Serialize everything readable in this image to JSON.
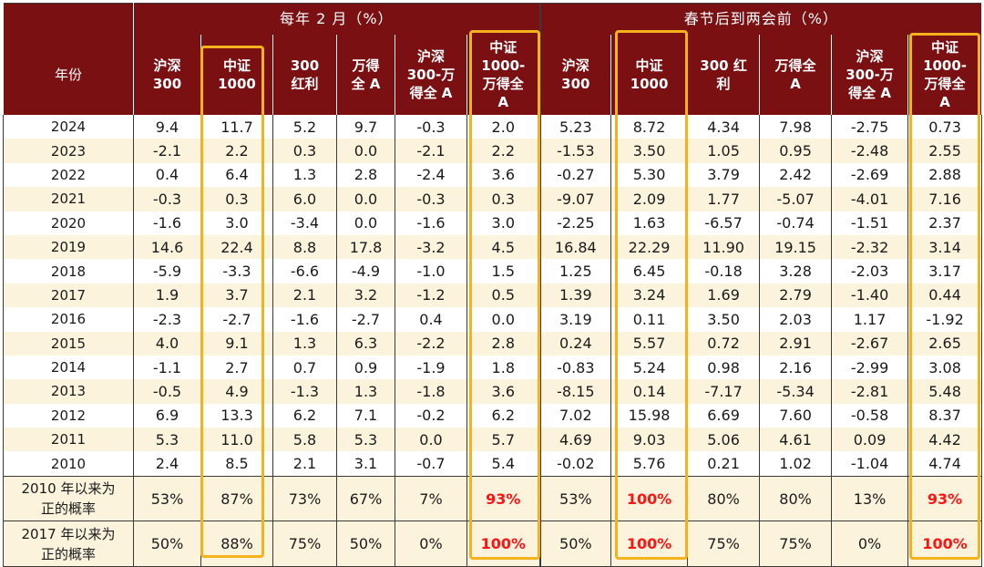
{
  "header": {
    "group1": "每年 2 月（%）",
    "group2": "春节后到两会前（%）",
    "year_label": "年份",
    "columns1": [
      "沪深\n300",
      "中证\n1000",
      "300\n红利",
      "万得\n全 A",
      "沪深\n300-万\n得全 A",
      "中证\n1000-\n万得全\nA"
    ],
    "columns2": [
      "沪深\n300",
      "中证\n1000",
      "300 红\n利",
      "万得全\nA",
      "沪深\n300-万\n得全 A",
      "中证\n1000-\n万得全\nA"
    ]
  },
  "rows": [
    {
      "year": "2024",
      "g1": [
        "9.4",
        "11.7",
        "5.2",
        "9.7",
        "-0.3",
        "2.0"
      ],
      "g2": [
        "5.23",
        "8.72",
        "4.34",
        "7.98",
        "-2.75",
        "0.73"
      ]
    },
    {
      "year": "2023",
      "g1": [
        "-2.1",
        "2.2",
        "0.3",
        "0.0",
        "-2.1",
        "2.2"
      ],
      "g2": [
        "-1.53",
        "3.50",
        "1.05",
        "0.95",
        "-2.48",
        "2.55"
      ]
    },
    {
      "year": "2022",
      "g1": [
        "0.4",
        "6.4",
        "1.3",
        "2.8",
        "-2.4",
        "3.6"
      ],
      "g2": [
        "-0.27",
        "5.30",
        "3.79",
        "2.42",
        "-2.69",
        "2.88"
      ]
    },
    {
      "year": "2021",
      "g1": [
        "-0.3",
        "0.3",
        "6.0",
        "0.0",
        "-0.3",
        "0.3"
      ],
      "g2": [
        "-9.07",
        "2.09",
        "1.77",
        "-5.07",
        "-4.01",
        "7.16"
      ]
    },
    {
      "year": "2020",
      "g1": [
        "-1.6",
        "3.0",
        "-3.4",
        "0.0",
        "-1.6",
        "3.0"
      ],
      "g2": [
        "-2.25",
        "1.63",
        "-6.57",
        "-0.74",
        "-1.51",
        "2.37"
      ]
    },
    {
      "year": "2019",
      "g1": [
        "14.6",
        "22.4",
        "8.8",
        "17.8",
        "-3.2",
        "4.5"
      ],
      "g2": [
        "16.84",
        "22.29",
        "11.90",
        "19.15",
        "-2.32",
        "3.14"
      ]
    },
    {
      "year": "2018",
      "g1": [
        "-5.9",
        "-3.3",
        "-6.6",
        "-4.9",
        "-1.0",
        "1.5"
      ],
      "g2": [
        "1.25",
        "6.45",
        "-0.18",
        "3.28",
        "-2.03",
        "3.17"
      ]
    },
    {
      "year": "2017",
      "g1": [
        "1.9",
        "3.7",
        "2.1",
        "3.2",
        "-1.2",
        "0.5"
      ],
      "g2": [
        "1.39",
        "3.24",
        "1.69",
        "2.79",
        "-1.40",
        "0.44"
      ]
    },
    {
      "year": "2016",
      "g1": [
        "-2.3",
        "-2.7",
        "-1.6",
        "-2.7",
        "0.4",
        "0.0"
      ],
      "g2": [
        "3.19",
        "0.11",
        "3.50",
        "2.03",
        "1.17",
        "-1.92"
      ]
    },
    {
      "year": "2015",
      "g1": [
        "4.0",
        "9.1",
        "1.3",
        "6.3",
        "-2.2",
        "2.8"
      ],
      "g2": [
        "0.24",
        "5.57",
        "0.72",
        "2.91",
        "-2.67",
        "2.65"
      ]
    },
    {
      "year": "2014",
      "g1": [
        "-1.1",
        "2.7",
        "0.7",
        "0.9",
        "-1.9",
        "1.8"
      ],
      "g2": [
        "-0.83",
        "5.24",
        "0.98",
        "2.16",
        "-2.99",
        "3.08"
      ]
    },
    {
      "year": "2013",
      "g1": [
        "-0.5",
        "4.9",
        "-1.3",
        "1.3",
        "-1.8",
        "3.6"
      ],
      "g2": [
        "-8.15",
        "0.14",
        "-7.17",
        "-5.34",
        "-2.81",
        "5.48"
      ]
    },
    {
      "year": "2012",
      "g1": [
        "6.9",
        "13.3",
        "6.2",
        "7.1",
        "-0.2",
        "6.2"
      ],
      "g2": [
        "7.02",
        "15.98",
        "6.69",
        "7.60",
        "-0.58",
        "8.37"
      ]
    },
    {
      "year": "2011",
      "g1": [
        "5.3",
        "11.0",
        "5.8",
        "5.3",
        "0.0",
        "5.7"
      ],
      "g2": [
        "4.69",
        "9.03",
        "5.06",
        "4.61",
        "0.09",
        "4.42"
      ]
    },
    {
      "year": "2010",
      "g1": [
        "2.4",
        "8.5",
        "2.1",
        "3.1",
        "-0.7",
        "5.4"
      ],
      "g2": [
        "-0.02",
        "5.76",
        "0.21",
        "1.02",
        "-1.04",
        "4.74"
      ]
    }
  ],
  "summary": [
    {
      "label": "2010 年以来为\n正的概率",
      "g1": [
        "53%",
        "87%",
        "73%",
        "67%",
        "7%",
        "93%"
      ],
      "g2": [
        "53%",
        "100%",
        "80%",
        "80%",
        "13%",
        "93%"
      ]
    },
    {
      "label": "2017 年以来为\n正的概率",
      "g1": [
        "50%",
        "88%",
        "75%",
        "50%",
        "0%",
        "100%"
      ],
      "g2": [
        "50%",
        "100%",
        "75%",
        "75%",
        "0%",
        "100%"
      ]
    }
  ],
  "red_cells": [
    [
      0,
      "g1",
      5
    ],
    [
      0,
      "g2",
      1
    ],
    [
      0,
      "g2",
      5
    ],
    [
      1,
      "g1",
      5
    ],
    [
      1,
      "g2",
      1
    ],
    [
      1,
      "g2",
      5
    ]
  ],
  "colors": {
    "header_bg": "#7b1013",
    "stripe": "#fcf3dc",
    "highlight": "#f4b31d",
    "red_text": "#ff1414"
  }
}
